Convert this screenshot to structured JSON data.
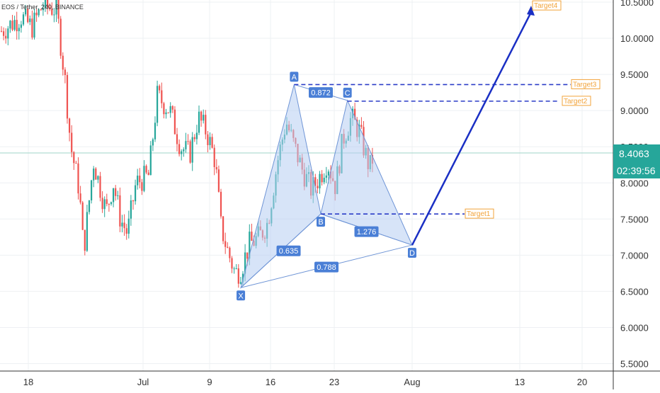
{
  "symbol_text": "EOS / Tether, 240, BINANCE",
  "colors": {
    "up": "#26a69a",
    "down": "#ef5350",
    "pattern_fill": "#b7cdf3",
    "pattern_stroke": "#6f95d6",
    "label_bg": "#4a7fd6",
    "arrow": "#1a2fc4",
    "dashed": "#2b3cc8",
    "target": "#f2a33a",
    "price_tag": "#26a69a"
  },
  "price_tag": {
    "price": "8.4063",
    "countdown": "02:39:56"
  },
  "chart_data": {
    "type": "candlestick",
    "title": "EOS / Tether, 240, BINANCE",
    "xlabel": "",
    "ylabel": "",
    "ylim": [
      5.45,
      10.6
    ],
    "x_tick_labels": [
      "18",
      "Jul",
      "9",
      "16",
      "23",
      "Aug",
      "13",
      "20"
    ],
    "y_tick_labels": [
      "10.5000",
      "10.0000",
      "9.5000",
      "9.0000",
      "8.5000",
      "8.0000",
      "7.5000",
      "7.0000",
      "6.5000",
      "6.0000",
      "5.5000"
    ],
    "current_price": 8.4063,
    "pattern_points": {
      "X": {
        "date": "Jul 12",
        "price": 6.55
      },
      "A": {
        "date": "Jul 18",
        "price": 9.36
      },
      "B": {
        "date": "Jul 21",
        "price": 7.57
      },
      "C": {
        "date": "Jul 24",
        "price": 9.14
      },
      "D": {
        "date": "Aug 1",
        "price": 7.14
      }
    },
    "ratios": [
      "0.872",
      "0.635",
      "1.276",
      "0.788"
    ],
    "targets": [
      {
        "label": "Target1",
        "price": 7.57
      },
      {
        "label": "Target2",
        "price": 9.13
      },
      {
        "label": "Target3",
        "price": 9.36
      },
      {
        "label": "Target4",
        "price": 10.42
      }
    ]
  }
}
